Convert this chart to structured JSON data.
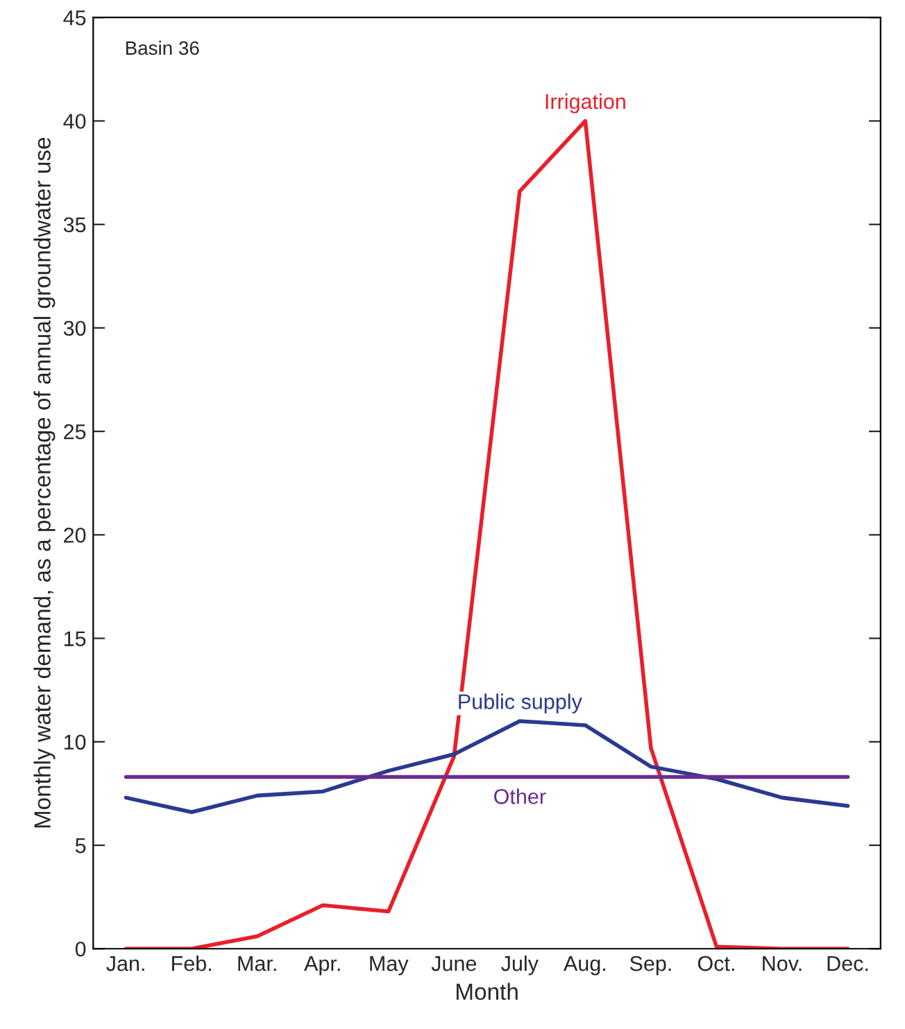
{
  "chart_data": {
    "type": "line",
    "xlabel": "Month",
    "ylabel": "Monthly water demand, as a percentage of annual groundwater use",
    "categories": [
      "Jan.",
      "Feb.",
      "Mar.",
      "Apr.",
      "May",
      "June",
      "July",
      "Aug.",
      "Sep.",
      "Oct.",
      "Nov.",
      "Dec."
    ],
    "series": [
      {
        "name": "Irrigation",
        "color": "#e8202a",
        "values": [
          0,
          0,
          0.6,
          2.1,
          1.8,
          9.3,
          36.6,
          40.0,
          9.7,
          0.1,
          0,
          0
        ]
      },
      {
        "name": "Public supply",
        "color": "#2b3990",
        "values": [
          7.3,
          6.6,
          7.4,
          7.6,
          8.6,
          9.4,
          11.0,
          10.8,
          8.8,
          8.2,
          7.3,
          6.9
        ]
      },
      {
        "name": "Other",
        "color": "#6a2c91",
        "values": [
          8.3,
          8.3,
          8.3,
          8.3,
          8.3,
          8.3,
          8.3,
          8.3,
          8.3,
          8.3,
          8.3,
          8.3
        ]
      }
    ],
    "ylim": [
      0,
      45
    ],
    "yticks": [
      0,
      5,
      10,
      15,
      20,
      25,
      30,
      35,
      40,
      45
    ],
    "grid": false,
    "legend": false,
    "marker": "none",
    "line_style": "solid",
    "annotations": [
      "Basin 36"
    ]
  }
}
